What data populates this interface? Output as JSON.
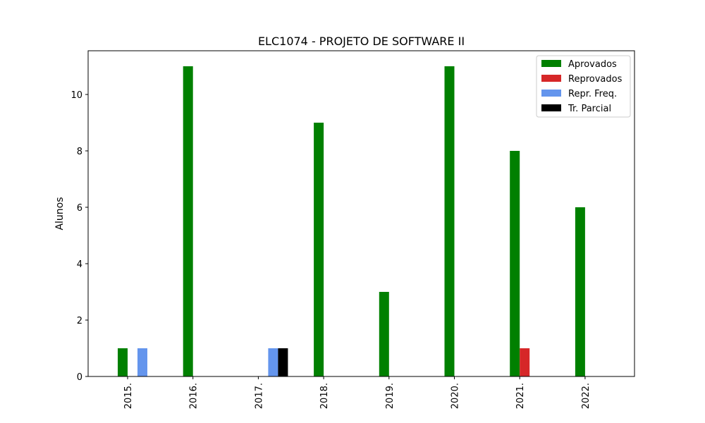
{
  "chart_data": {
    "type": "bar",
    "title": "ELC1074 - PROJETO DE SOFTWARE II",
    "xlabel": "",
    "ylabel": "Alunos",
    "categories": [
      "2015.",
      "2016.",
      "2017.",
      "2018.",
      "2019.",
      "2020.",
      "2021.",
      "2022."
    ],
    "ylim": [
      0,
      11.55
    ],
    "yticks": [
      0,
      2,
      4,
      6,
      8,
      10
    ],
    "legend_position": "top-right",
    "grid": false,
    "series": [
      {
        "name": "Aprovados",
        "color": "#008000",
        "values": [
          1,
          11,
          0,
          9,
          3,
          11,
          8,
          6
        ]
      },
      {
        "name": "Reprovados",
        "color": "#d62728",
        "values": [
          0,
          0,
          0,
          0,
          0,
          0,
          1,
          0
        ]
      },
      {
        "name": "Repr. Freq.",
        "color": "#6495ed",
        "values": [
          1,
          0,
          1,
          0,
          0,
          0,
          0,
          0
        ]
      },
      {
        "name": "Tr. Parcial",
        "color": "#000000",
        "values": [
          0,
          0,
          1,
          0,
          0,
          0,
          0,
          0
        ]
      }
    ]
  }
}
